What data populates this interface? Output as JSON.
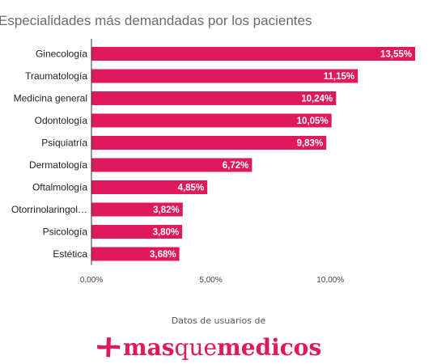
{
  "chart_data": {
    "type": "bar",
    "orientation": "horizontal",
    "title": "Especialidades más demandadas por los pacientes",
    "categories": [
      "Ginecología",
      "Traumatología",
      "Medicina general",
      "Odontología",
      "Psiquiatría",
      "Dermatología",
      "Oftalmología",
      "Otorrinolaringol…",
      "Psicología",
      "Estética"
    ],
    "values": [
      13.55,
      11.15,
      10.24,
      10.05,
      9.83,
      6.72,
      4.85,
      3.82,
      3.8,
      3.68
    ],
    "value_labels": [
      "13,55%",
      "11,15%",
      "10,24%",
      "10,05%",
      "9,83%",
      "6,72%",
      "4,85%",
      "3,82%",
      "3,80%",
      "3,68%"
    ],
    "xlim": [
      0,
      13.55
    ],
    "x_ticks": [
      0,
      5,
      10
    ],
    "x_tick_labels": [
      "0,00%",
      "5,00%",
      "10,00%"
    ],
    "grid": false,
    "bar_color": "#e0185e"
  },
  "footer": {
    "caption": "Datos de usuarios de",
    "brand_part1": "mas",
    "brand_part2": "que",
    "brand_part3": "medicos",
    "brand_color": "#e0185e"
  }
}
